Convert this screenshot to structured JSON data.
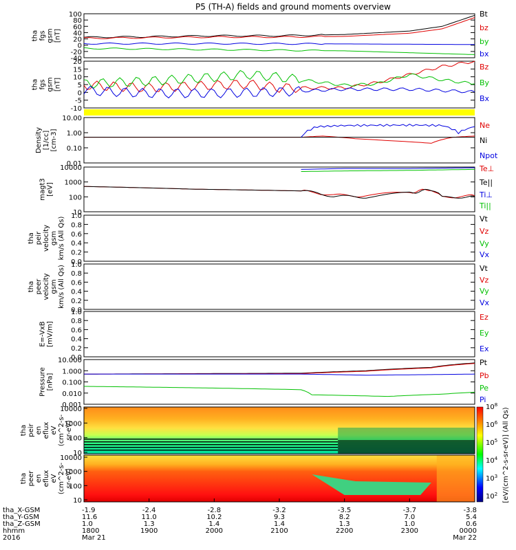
{
  "title": "P5 (TH-A) fields and ground moments overview",
  "colors": {
    "black": "#000000",
    "red": "#e00000",
    "green": "#00c000",
    "blue": "#0000e0",
    "yellow": "#ffff00"
  },
  "bottom_axis": {
    "row_labels": [
      "tha_X-GSM",
      "tha_Y-GSM",
      "tha_Z-GSM",
      "hhmm",
      "2016"
    ],
    "columns": [
      {
        "x": "1800",
        "vals": [
          "-1.9",
          "11.6",
          "1.0",
          "1800",
          "Mar 21"
        ]
      },
      {
        "x": "1900",
        "vals": [
          "-2.4",
          "11.0",
          "1.3",
          "1900",
          ""
        ]
      },
      {
        "x": "2000",
        "vals": [
          "-2.8",
          "10.2",
          "1.4",
          "2000",
          ""
        ]
      },
      {
        "x": "2100",
        "vals": [
          "-3.2",
          "9.3",
          "1.4",
          "2100",
          ""
        ]
      },
      {
        "x": "2200",
        "vals": [
          "-3.5",
          "8.2",
          "1.3",
          "2200",
          ""
        ]
      },
      {
        "x": "2300",
        "vals": [
          "-3.7",
          "7.0",
          "1.0",
          "2300",
          ""
        ]
      },
      {
        "x": "0000",
        "vals": [
          "-3.8",
          "5.4",
          "0.6",
          "0000",
          "Mar 22"
        ]
      }
    ]
  },
  "colorbar": {
    "label": "[eV/(cm^2-s-sr-eV)] (All Qs)",
    "ticks": [
      "10^2",
      "10^3",
      "10^4",
      "10^5",
      "10^6",
      "10^8"
    ]
  },
  "chart_data": [
    {
      "type": "line",
      "ylabel": [
        "tha",
        "fgs",
        "gsm",
        "[nT]"
      ],
      "ylim": [
        -40,
        100
      ],
      "yticks": [
        "100",
        "80",
        "60",
        "40",
        "20",
        "0",
        "-20",
        "-40"
      ],
      "xlim": [
        0,
        360
      ],
      "series": [
        {
          "name": "Bt",
          "color": "black",
          "values": [
            [
              0,
              25
            ],
            [
              60,
              27
            ],
            [
              120,
              30
            ],
            [
              180,
              30
            ],
            [
              240,
              34
            ],
            [
              300,
              45
            ],
            [
              330,
              60
            ],
            [
              360,
              95
            ]
          ]
        },
        {
          "name": "bz",
          "color": "red",
          "values": [
            [
              0,
              22
            ],
            [
              60,
              24
            ],
            [
              120,
              26
            ],
            [
              180,
              26
            ],
            [
              240,
              28
            ],
            [
              300,
              38
            ],
            [
              330,
              52
            ],
            [
              360,
              88
            ]
          ]
        },
        {
          "name": "by",
          "color": "green",
          "values": [
            [
              0,
              -10
            ],
            [
              60,
              -12
            ],
            [
              120,
              -14
            ],
            [
              180,
              -16
            ],
            [
              240,
              -18
            ],
            [
              300,
              -24
            ],
            [
              360,
              -30
            ]
          ]
        },
        {
          "name": "bx",
          "color": "blue",
          "values": [
            [
              0,
              5
            ],
            [
              120,
              5
            ],
            [
              240,
              4
            ],
            [
              300,
              3
            ],
            [
              360,
              2
            ]
          ]
        }
      ]
    },
    {
      "type": "line",
      "ylabel": [
        "tha",
        "fgs",
        "gsm",
        "[nT]"
      ],
      "ylim": [
        -15,
        20
      ],
      "yticks": [
        "20",
        "15",
        "10",
        "5",
        "0",
        "-5",
        "-10"
      ],
      "xlim": [
        0,
        360
      ],
      "series": [
        {
          "name": "Bz",
          "color": "red",
          "values": [
            [
              0,
              2
            ],
            [
              60,
              0
            ],
            [
              120,
              2
            ],
            [
              150,
              3
            ],
            [
              180,
              0
            ],
            [
              240,
              0
            ],
            [
              270,
              4
            ],
            [
              300,
              10
            ],
            [
              330,
              16
            ],
            [
              360,
              20
            ]
          ]
        },
        {
          "name": "By",
          "color": "green",
          "values": [
            [
              0,
              3
            ],
            [
              60,
              5
            ],
            [
              120,
              8
            ],
            [
              150,
              10
            ],
            [
              180,
              8
            ],
            [
              240,
              2
            ],
            [
              270,
              3
            ],
            [
              300,
              10
            ],
            [
              330,
              6
            ],
            [
              360,
              3
            ]
          ]
        },
        {
          "name": "Bx",
          "color": "blue",
          "values": [
            [
              0,
              -2
            ],
            [
              60,
              -4
            ],
            [
              120,
              -4
            ],
            [
              180,
              -3
            ],
            [
              240,
              -1
            ],
            [
              300,
              -1
            ],
            [
              360,
              -3
            ]
          ]
        }
      ]
    },
    {
      "type": "line",
      "ylabel": [
        "Density",
        "[1/cc]",
        "[cm-3]"
      ],
      "ylim": [
        0.01,
        10
      ],
      "log": true,
      "yticks": [
        "10.00",
        "1.00",
        "0.10",
        "0.01"
      ],
      "xlim": [
        0,
        360
      ],
      "series": [
        {
          "name": "Ne",
          "color": "red",
          "values": [
            [
              0,
              0.5
            ],
            [
              200,
              0.5
            ],
            [
              220,
              0.6
            ],
            [
              250,
              0.4
            ],
            [
              280,
              0.3
            ],
            [
              320,
              0.2
            ],
            [
              340,
              0.5
            ],
            [
              360,
              0.6
            ]
          ]
        },
        {
          "name": "Ni",
          "color": "black",
          "values": [
            [
              0,
              0.5
            ],
            [
              200,
              0.5
            ],
            [
              240,
              0.5
            ],
            [
              300,
              0.5
            ],
            [
              360,
              0.5
            ]
          ]
        },
        {
          "name": "Npot",
          "color": "blue",
          "values": [
            [
              200,
              0.5
            ],
            [
              215,
              2.5
            ],
            [
              240,
              3.0
            ],
            [
              300,
              3.2
            ],
            [
              330,
              3.0
            ],
            [
              345,
              1.0
            ],
            [
              360,
              2.5
            ]
          ]
        }
      ]
    },
    {
      "type": "line",
      "ylabel": [
        "magt3",
        "[eV]"
      ],
      "ylim": [
        10,
        10000
      ],
      "log": true,
      "yticks": [
        "10000",
        "1000",
        "100",
        "10"
      ],
      "xlim": [
        0,
        360
      ],
      "series": [
        {
          "name": "Te⊥",
          "color": "red",
          "values": [
            [
              0,
              500
            ],
            [
              100,
              330
            ],
            [
              200,
              250
            ],
            [
              230,
              130
            ],
            [
              260,
              120
            ],
            [
              300,
              200
            ],
            [
              320,
              320
            ],
            [
              330,
              100
            ],
            [
              360,
              120
            ]
          ]
        },
        {
          "name": "Te||",
          "color": "black",
          "values": [
            [
              0,
              500
            ],
            [
              100,
              330
            ],
            [
              200,
              250
            ],
            [
              230,
              110
            ],
            [
              260,
              100
            ],
            [
              300,
              180
            ],
            [
              320,
              300
            ],
            [
              330,
              90
            ],
            [
              360,
              110
            ]
          ]
        },
        {
          "name": "Ti⊥",
          "color": "blue",
          "values": [
            [
              200,
              7000
            ],
            [
              240,
              8000
            ],
            [
              300,
              8000
            ],
            [
              360,
              9000
            ]
          ]
        },
        {
          "name": "Ti||",
          "color": "green",
          "values": [
            [
              200,
              5000
            ],
            [
              240,
              5500
            ],
            [
              300,
              6000
            ],
            [
              360,
              7000
            ]
          ]
        }
      ]
    },
    {
      "type": "line",
      "ylabel": [
        "tha",
        "peir",
        "velocity",
        "gsm",
        "km/s (All Qs)"
      ],
      "ylim": [
        0,
        1
      ],
      "yticks": [
        "1.0",
        "0.8",
        "0.6",
        "0.4",
        "0.2",
        "0.0"
      ],
      "series": [
        {
          "name": "Vt",
          "color": "black",
          "values": []
        },
        {
          "name": "Vz",
          "color": "red",
          "values": []
        },
        {
          "name": "Vy",
          "color": "green",
          "values": []
        },
        {
          "name": "Vx",
          "color": "blue",
          "values": []
        }
      ]
    },
    {
      "type": "line",
      "ylabel": [
        "tha",
        "peer",
        "velocity",
        "gsm",
        "km/s (All Qs)"
      ],
      "ylim": [
        0,
        1
      ],
      "yticks": [
        "1.0",
        "0.8",
        "0.6",
        "0.4",
        "0.2",
        "0.0"
      ],
      "series": [
        {
          "name": "Vt",
          "color": "black",
          "values": []
        },
        {
          "name": "Vz",
          "color": "red",
          "values": []
        },
        {
          "name": "Vy",
          "color": "green",
          "values": []
        },
        {
          "name": "Vx",
          "color": "blue",
          "values": []
        }
      ]
    },
    {
      "type": "line",
      "ylabel": [
        "E=-VxB",
        "[mV/m]"
      ],
      "ylim": [
        0,
        1
      ],
      "yticks": [
        "1.0",
        "0.8",
        "0.6",
        "0.4",
        "0.2",
        "0.0"
      ],
      "series": [
        {
          "name": "Ez",
          "color": "red",
          "values": []
        },
        {
          "name": "Ey",
          "color": "green",
          "values": []
        },
        {
          "name": "Ex",
          "color": "blue",
          "values": []
        }
      ]
    },
    {
      "type": "line",
      "ylabel": [
        "Pressure",
        "[nPa]"
      ],
      "ylim": [
        0.001,
        10
      ],
      "log": true,
      "yticks": [
        "10.000",
        "1.000",
        "0.100",
        "0.010",
        "0.001"
      ],
      "xlim": [
        0,
        360
      ],
      "series": [
        {
          "name": "Pt",
          "color": "black",
          "values": [
            [
              0,
              0.5
            ],
            [
              200,
              0.6
            ],
            [
              260,
              1.0
            ],
            [
              320,
              2.0
            ],
            [
              360,
              5.0
            ]
          ]
        },
        {
          "name": "Pb",
          "color": "red",
          "values": [
            [
              0,
              0.5
            ],
            [
              200,
              0.55
            ],
            [
              260,
              0.9
            ],
            [
              320,
              1.8
            ],
            [
              360,
              4.5
            ]
          ]
        },
        {
          "name": "Pe",
          "color": "green",
          "values": [
            [
              0,
              0.04
            ],
            [
              100,
              0.03
            ],
            [
              200,
              0.02
            ],
            [
              210,
              0.007
            ],
            [
              280,
              0.005
            ],
            [
              330,
              0.008
            ],
            [
              360,
              0.012
            ]
          ]
        },
        {
          "name": "Pi",
          "color": "blue",
          "values": [
            [
              0,
              0.5
            ],
            [
              200,
              0.5
            ],
            [
              260,
              0.4
            ],
            [
              320,
              0.45
            ],
            [
              360,
              0.5
            ]
          ]
        }
      ]
    },
    {
      "type": "heatmap",
      "ylabel": [
        "tha",
        "peir",
        "en",
        "eflux",
        "eV",
        "(cm^2-s-",
        "sr-eV)"
      ],
      "yticks": [
        "10000",
        "1000",
        "100",
        "10"
      ]
    },
    {
      "type": "heatmap",
      "ylabel": [
        "tha",
        "peer",
        "en",
        "eflux",
        "eV",
        "(cm^2-s-",
        "sr-eV)"
      ],
      "yticks": [
        "10000",
        "1000",
        "100",
        "10"
      ]
    }
  ]
}
